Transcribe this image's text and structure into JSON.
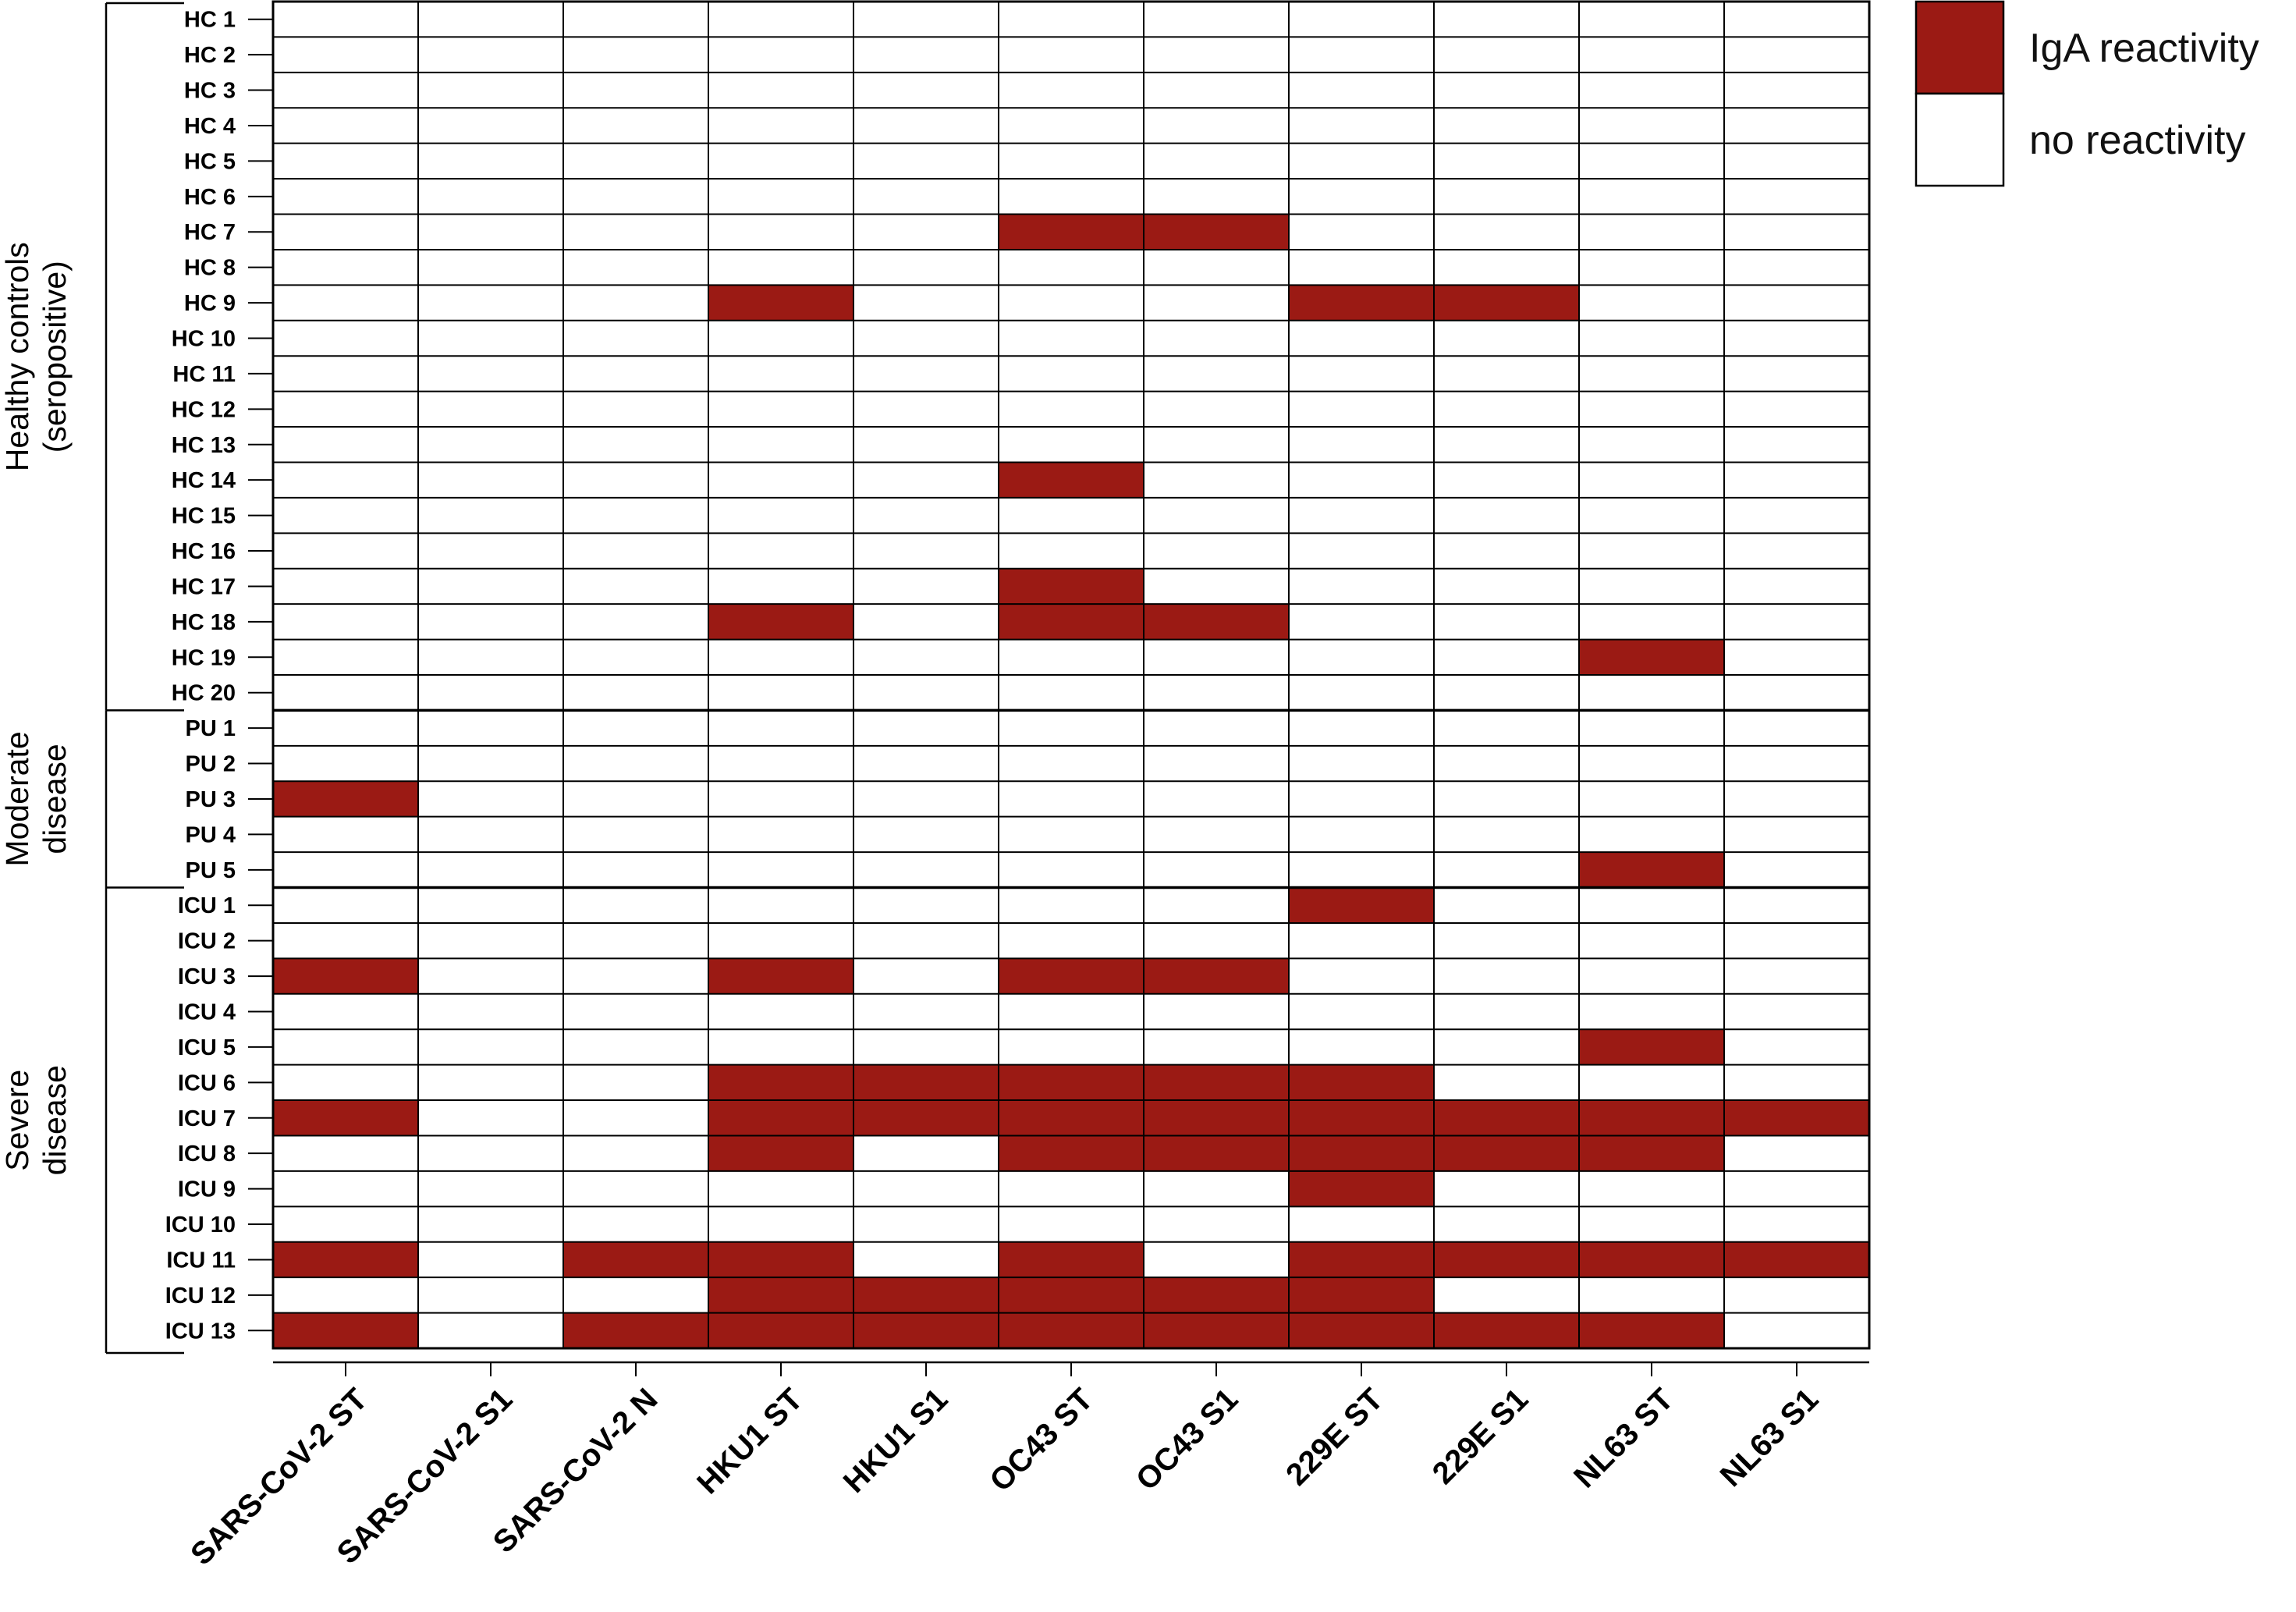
{
  "chart_data": {
    "type": "heatmap",
    "title": "",
    "xlabel": "",
    "ylabel": "",
    "colors": {
      "reactive": "#9b1a14",
      "none": "#ffffff",
      "grid": "#000000"
    },
    "columns": [
      "SARS-CoV-2 ST",
      "SARS-CoV-2 S1",
      "SARS-CoV-2 N",
      "HKU1 ST",
      "HKU1 S1",
      "OC43 ST",
      "OC43 S1",
      "229E ST",
      "229E S1",
      "NL63 ST",
      "NL63 S1"
    ],
    "groups": [
      {
        "label_lines": [
          "Healthy controls",
          "(seropositive)"
        ],
        "rows": 20
      },
      {
        "label_lines": [
          "Moderate",
          "disease"
        ],
        "rows": 5
      },
      {
        "label_lines": [
          "Severe",
          "disease"
        ],
        "rows": 13
      }
    ],
    "rows": [
      {
        "label": "HC 1",
        "values": [
          0,
          0,
          0,
          0,
          0,
          0,
          0,
          0,
          0,
          0,
          0
        ]
      },
      {
        "label": "HC 2",
        "values": [
          0,
          0,
          0,
          0,
          0,
          0,
          0,
          0,
          0,
          0,
          0
        ]
      },
      {
        "label": "HC 3",
        "values": [
          0,
          0,
          0,
          0,
          0,
          0,
          0,
          0,
          0,
          0,
          0
        ]
      },
      {
        "label": "HC 4",
        "values": [
          0,
          0,
          0,
          0,
          0,
          0,
          0,
          0,
          0,
          0,
          0
        ]
      },
      {
        "label": "HC 5",
        "values": [
          0,
          0,
          0,
          0,
          0,
          0,
          0,
          0,
          0,
          0,
          0
        ]
      },
      {
        "label": "HC 6",
        "values": [
          0,
          0,
          0,
          0,
          0,
          0,
          0,
          0,
          0,
          0,
          0
        ]
      },
      {
        "label": "HC 7",
        "values": [
          0,
          0,
          0,
          0,
          0,
          1,
          1,
          0,
          0,
          0,
          0
        ]
      },
      {
        "label": "HC 8",
        "values": [
          0,
          0,
          0,
          0,
          0,
          0,
          0,
          0,
          0,
          0,
          0
        ]
      },
      {
        "label": "HC 9",
        "values": [
          0,
          0,
          0,
          1,
          0,
          0,
          0,
          1,
          1,
          0,
          0
        ]
      },
      {
        "label": "HC 10",
        "values": [
          0,
          0,
          0,
          0,
          0,
          0,
          0,
          0,
          0,
          0,
          0
        ]
      },
      {
        "label": "HC 11",
        "values": [
          0,
          0,
          0,
          0,
          0,
          0,
          0,
          0,
          0,
          0,
          0
        ]
      },
      {
        "label": "HC 12",
        "values": [
          0,
          0,
          0,
          0,
          0,
          0,
          0,
          0,
          0,
          0,
          0
        ]
      },
      {
        "label": "HC 13",
        "values": [
          0,
          0,
          0,
          0,
          0,
          0,
          0,
          0,
          0,
          0,
          0
        ]
      },
      {
        "label": "HC 14",
        "values": [
          0,
          0,
          0,
          0,
          0,
          1,
          0,
          0,
          0,
          0,
          0
        ]
      },
      {
        "label": "HC 15",
        "values": [
          0,
          0,
          0,
          0,
          0,
          0,
          0,
          0,
          0,
          0,
          0
        ]
      },
      {
        "label": "HC 16",
        "values": [
          0,
          0,
          0,
          0,
          0,
          0,
          0,
          0,
          0,
          0,
          0
        ]
      },
      {
        "label": "HC 17",
        "values": [
          0,
          0,
          0,
          0,
          0,
          1,
          0,
          0,
          0,
          0,
          0
        ]
      },
      {
        "label": "HC 18",
        "values": [
          0,
          0,
          0,
          1,
          0,
          1,
          1,
          0,
          0,
          0,
          0
        ]
      },
      {
        "label": "HC 19",
        "values": [
          0,
          0,
          0,
          0,
          0,
          0,
          0,
          0,
          0,
          1,
          0
        ]
      },
      {
        "label": "HC 20",
        "values": [
          0,
          0,
          0,
          0,
          0,
          0,
          0,
          0,
          0,
          0,
          0
        ]
      },
      {
        "label": "PU 1",
        "values": [
          0,
          0,
          0,
          0,
          0,
          0,
          0,
          0,
          0,
          0,
          0
        ]
      },
      {
        "label": "PU 2",
        "values": [
          0,
          0,
          0,
          0,
          0,
          0,
          0,
          0,
          0,
          0,
          0
        ]
      },
      {
        "label": "PU 3",
        "values": [
          1,
          0,
          0,
          0,
          0,
          0,
          0,
          0,
          0,
          0,
          0
        ]
      },
      {
        "label": "PU 4",
        "values": [
          0,
          0,
          0,
          0,
          0,
          0,
          0,
          0,
          0,
          0,
          0
        ]
      },
      {
        "label": "PU 5",
        "values": [
          0,
          0,
          0,
          0,
          0,
          0,
          0,
          0,
          0,
          1,
          0
        ]
      },
      {
        "label": "ICU 1",
        "values": [
          0,
          0,
          0,
          0,
          0,
          0,
          0,
          1,
          0,
          0,
          0
        ]
      },
      {
        "label": "ICU 2",
        "values": [
          0,
          0,
          0,
          0,
          0,
          0,
          0,
          0,
          0,
          0,
          0
        ]
      },
      {
        "label": "ICU 3",
        "values": [
          1,
          0,
          0,
          1,
          0,
          1,
          1,
          0,
          0,
          0,
          0
        ]
      },
      {
        "label": "ICU 4",
        "values": [
          0,
          0,
          0,
          0,
          0,
          0,
          0,
          0,
          0,
          0,
          0
        ]
      },
      {
        "label": "ICU 5",
        "values": [
          0,
          0,
          0,
          0,
          0,
          0,
          0,
          0,
          0,
          1,
          0
        ]
      },
      {
        "label": "ICU 6",
        "values": [
          0,
          0,
          0,
          1,
          1,
          1,
          1,
          1,
          0,
          0,
          0
        ]
      },
      {
        "label": "ICU 7",
        "values": [
          1,
          0,
          0,
          1,
          1,
          1,
          1,
          1,
          1,
          1,
          1
        ]
      },
      {
        "label": "ICU 8",
        "values": [
          0,
          0,
          0,
          1,
          0,
          1,
          1,
          1,
          1,
          1,
          0
        ]
      },
      {
        "label": "ICU 9",
        "values": [
          0,
          0,
          0,
          0,
          0,
          0,
          0,
          1,
          0,
          0,
          0
        ]
      },
      {
        "label": "ICU 10",
        "values": [
          0,
          0,
          0,
          0,
          0,
          0,
          0,
          0,
          0,
          0,
          0
        ]
      },
      {
        "label": "ICU 11",
        "values": [
          1,
          0,
          1,
          1,
          0,
          1,
          0,
          1,
          1,
          1,
          1
        ]
      },
      {
        "label": "ICU 12",
        "values": [
          0,
          0,
          0,
          1,
          1,
          1,
          1,
          1,
          0,
          0,
          0
        ]
      },
      {
        "label": "ICU 13",
        "values": [
          1,
          0,
          1,
          1,
          1,
          1,
          1,
          1,
          1,
          1,
          0
        ]
      }
    ],
    "legend": {
      "position": "top-right",
      "entries": [
        {
          "label": "IgA reactivity",
          "color": "#9b1a14"
        },
        {
          "label": "no reactivity",
          "color": "#ffffff"
        }
      ]
    }
  }
}
